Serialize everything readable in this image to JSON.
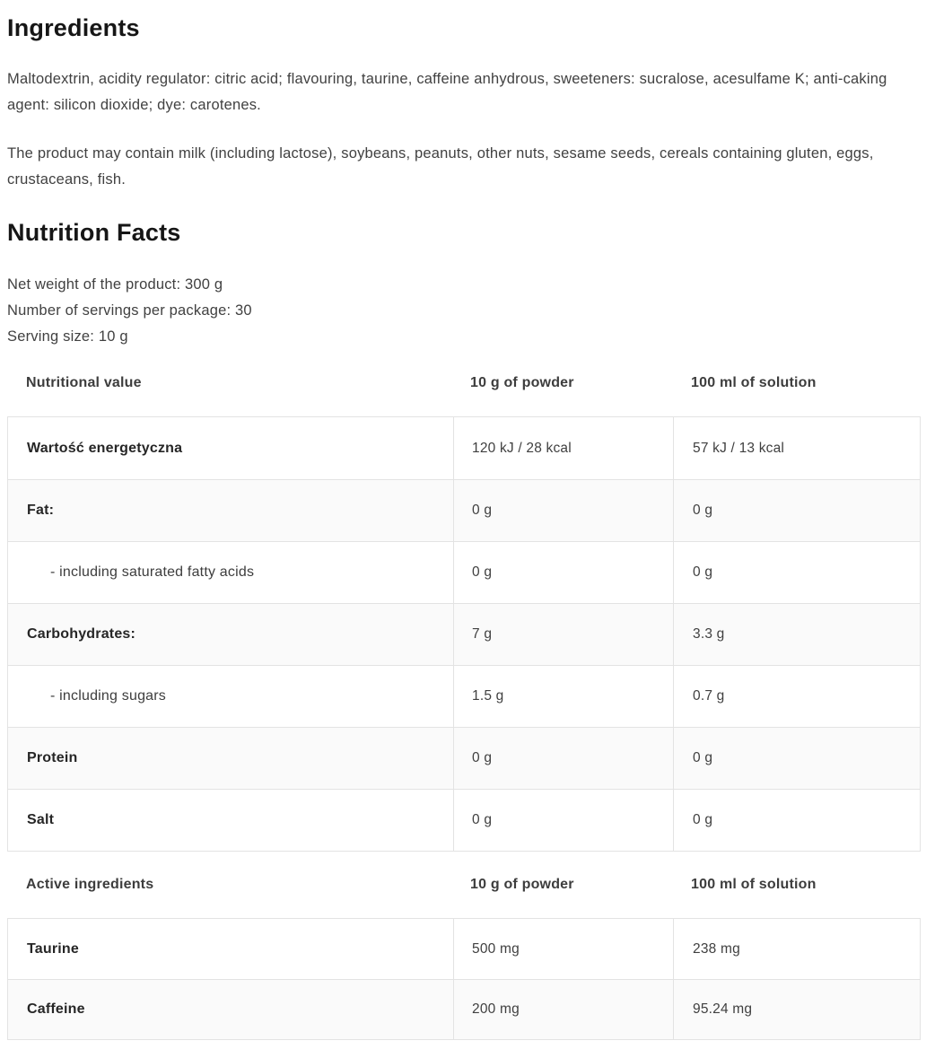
{
  "ingredients": {
    "title": "Ingredients",
    "composition": "Maltodextrin, acidity regulator: citric acid; flavouring, taurine, caffeine anhydrous, sweeteners: sucralose, acesulfame K; anti-caking agent: silicon dioxide; dye: carotenes.",
    "allergens": "The product may contain milk (including lactose), soybeans, peanuts, other nuts, sesame seeds, cereals containing gluten, eggs, crustaceans, fish."
  },
  "nutrition": {
    "title": "Nutrition Facts",
    "net_weight": "Net weight of the product: 300 g",
    "servings": "Number of servings per package: 30",
    "serving_size": "Serving size: 10 g",
    "tables": [
      {
        "headers": [
          "Nutritional value",
          "10 g of powder",
          "100 ml of solution"
        ],
        "rows": [
          {
            "label": "Wartość energetyczna",
            "powder": "120 kJ / 28 kcal",
            "solution": "57 kJ / 13 kcal"
          },
          {
            "label": "Fat:",
            "powder": "0 g",
            "solution": "0 g"
          },
          {
            "label": "- including saturated fatty acids",
            "powder": "0 g",
            "solution": "0 g"
          },
          {
            "label": "Carbohydrates:",
            "powder": "7 g",
            "solution": "3.3 g"
          },
          {
            "label": "- including sugars",
            "powder": "1.5 g",
            "solution": "0.7 g"
          },
          {
            "label": "Protein",
            "powder": "0 g",
            "solution": "0 g"
          },
          {
            "label": "Salt",
            "powder": "0 g",
            "solution": "0 g"
          }
        ]
      },
      {
        "headers": [
          "Active ingredients",
          "10 g of powder",
          "100 ml of solution"
        ],
        "rows": [
          {
            "label": "Taurine",
            "powder": "500 mg",
            "solution": "238 mg"
          },
          {
            "label": "Caffeine",
            "powder": "200 mg",
            "solution": "95.24 mg"
          }
        ]
      }
    ]
  },
  "colors": {
    "heading_text": "#161616",
    "body_text": "#414141",
    "table_border": "#e3e3e3",
    "row_alt_bg": "#fafafa"
  }
}
